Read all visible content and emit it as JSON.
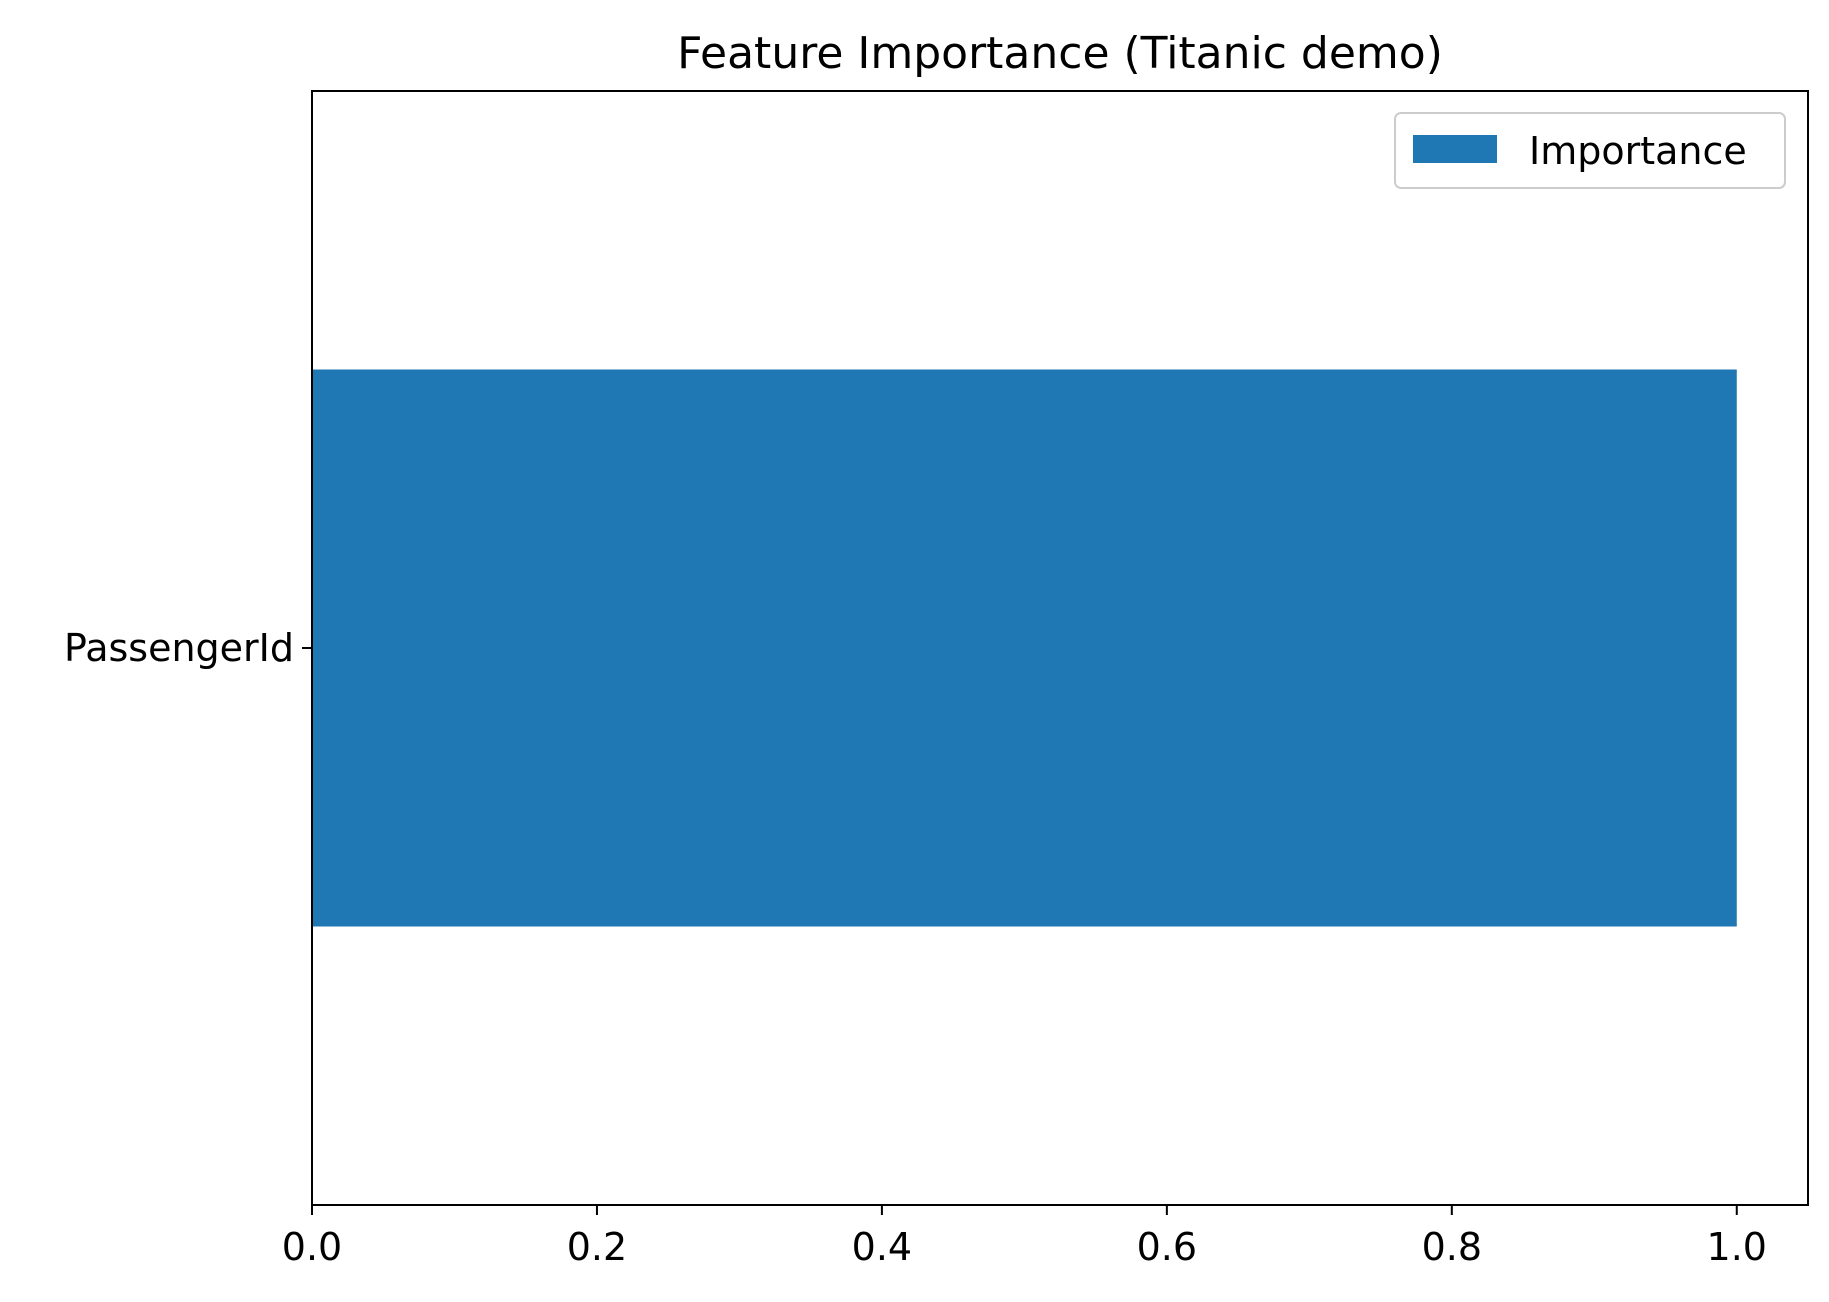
{
  "chart_data": {
    "type": "bar",
    "orientation": "horizontal",
    "title": "Feature Importance (Titanic demo)",
    "xlabel": "",
    "ylabel": "",
    "categories": [
      "PassengerId"
    ],
    "series": [
      {
        "name": "Importance",
        "values": [
          1.0
        ],
        "color": "#1f77b4"
      }
    ],
    "xlim": [
      0.0,
      1.05
    ],
    "x_ticks": [
      0.0,
      0.2,
      0.4,
      0.6,
      0.8,
      1.0
    ],
    "x_tick_labels": [
      "0.0",
      "0.2",
      "0.4",
      "0.6",
      "0.8",
      "1.0"
    ],
    "grid": false,
    "legend_position": "top-right"
  }
}
